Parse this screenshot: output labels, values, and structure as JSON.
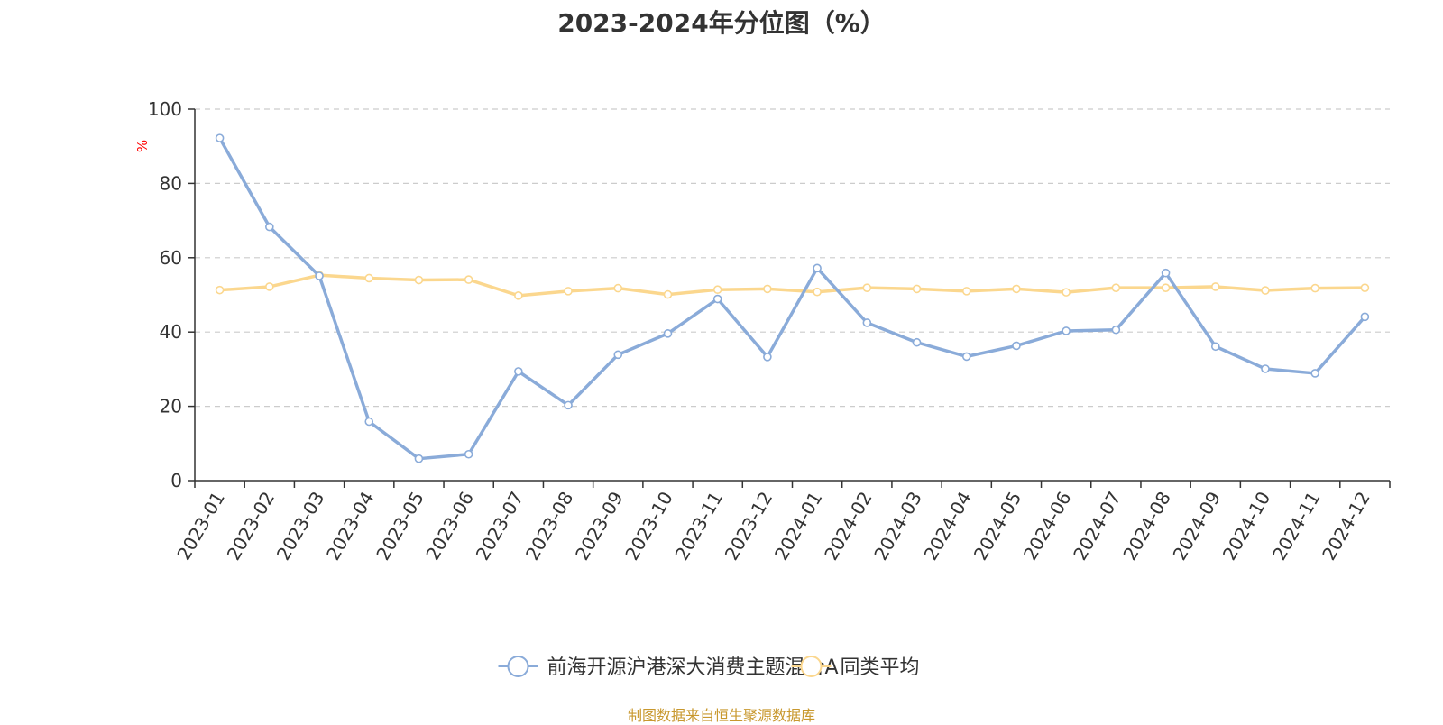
{
  "chart_data": {
    "type": "line",
    "title": "2023-2024年分位图（%）",
    "ylabel": "%",
    "ylim": [
      0,
      100
    ],
    "yticks": [
      0,
      20,
      40,
      60,
      80,
      100
    ],
    "grid": true,
    "legend_position": "bottom",
    "categories": [
      "2023-01",
      "2023-02",
      "2023-03",
      "2023-04",
      "2023-05",
      "2023-06",
      "2023-07",
      "2023-08",
      "2023-09",
      "2023-10",
      "2023-11",
      "2023-12",
      "2024-01",
      "2024-02",
      "2024-03",
      "2024-04",
      "2024-05",
      "2024-06",
      "2024-07",
      "2024-08",
      "2024-09",
      "2024-10",
      "2024-11",
      "2024-12"
    ],
    "series": [
      {
        "name": "前海开源沪港深大消费主题混合A",
        "color": "#8aabd9",
        "values": [
          92.2,
          68.3,
          55.1,
          15.9,
          5.9,
          7.1,
          29.4,
          20.3,
          33.9,
          39.6,
          48.9,
          33.3,
          57.2,
          42.5,
          37.2,
          33.4,
          36.3,
          40.3,
          40.6,
          55.9,
          36.1,
          30.1,
          28.9,
          44.1
        ]
      },
      {
        "name": "同类平均",
        "color": "#fbd78e",
        "values": [
          51.3,
          52.2,
          55.3,
          54.5,
          54.0,
          54.1,
          49.8,
          51.0,
          51.8,
          50.1,
          51.4,
          51.6,
          50.8,
          51.9,
          51.6,
          51.0,
          51.6,
          50.7,
          51.9,
          51.9,
          52.2,
          51.2,
          51.8,
          51.9
        ]
      }
    ]
  },
  "source_note": "制图数据来自恒生聚源数据库",
  "colors": {
    "axis": "#333333",
    "grid": "#cccccc",
    "unit_label": "#ff0000",
    "source_note": "#c8982e"
  }
}
